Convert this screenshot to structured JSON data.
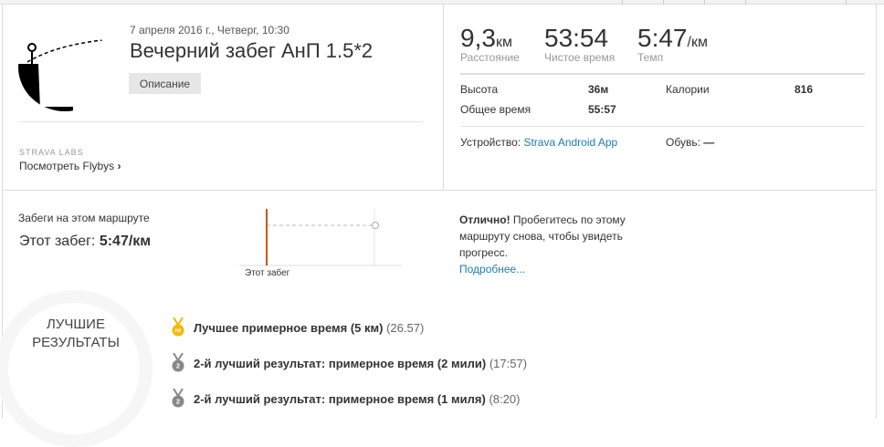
{
  "activity": {
    "date": "7 апреля 2016 г., Четверг, 10:30",
    "title": "Вечерний забег АнП 1.5*2",
    "description_button": "Описание",
    "labs_label": "STRAVA LABS",
    "flybys_link": "Посмотреть Flybys",
    "flybys_chevron": "›"
  },
  "stats": {
    "distance": {
      "value": "9,3",
      "unit": "км",
      "label": "Расстояние"
    },
    "moving_time": {
      "value": "53:54",
      "label": "Чистое время"
    },
    "pace": {
      "value": "5:47",
      "unit": "/км",
      "label": "Темп"
    },
    "elevation": {
      "label": "Высота",
      "value": "36м"
    },
    "calories": {
      "label": "Калории",
      "value": "816"
    },
    "elapsed": {
      "label": "Общее время",
      "value": "55:57"
    },
    "device": {
      "label": "Устройство:",
      "value": "Strava Android App"
    },
    "shoes": {
      "label": "Обувь:",
      "value": "—"
    }
  },
  "route": {
    "heading": "Забеги на этом маршруте",
    "this_run_label": "Этот забег:",
    "this_run_value": "5:47/км",
    "chart_label": "Этот забег",
    "accent": "#d0531c",
    "msg_bold": "Отлично!",
    "msg_line1": " Пробегитесь по этому",
    "msg_line2": "маршруту снова, чтобы увидеть",
    "msg_line3": "прогресс.",
    "more_link": "Подробнее..."
  },
  "best": {
    "heading1": "ЛУЧШИЕ",
    "heading2": "РЕЗУЛЬТАТЫ",
    "items": [
      {
        "icon": "pr-medal-icon",
        "badge": "PR",
        "color": "#f5b800",
        "text": "Лучшее примерное время (5 км)",
        "time": "(26.57)"
      },
      {
        "icon": "silver-medal-icon",
        "badge": "2",
        "color": "#888888",
        "text": "2-й лучший результат: примерное время (2 мили)",
        "time": "(17:57)"
      },
      {
        "icon": "silver-medal-icon",
        "badge": "2",
        "color": "#888888",
        "text": "2-й лучший результат: примерное время (1 миля)",
        "time": "(8:20)"
      }
    ]
  }
}
